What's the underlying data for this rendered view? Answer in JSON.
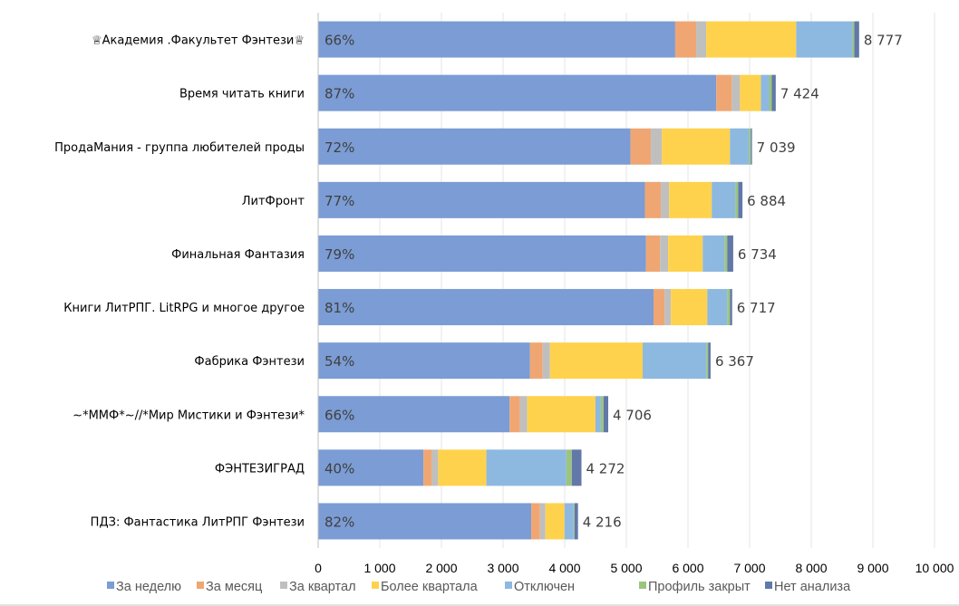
{
  "chart_data": {
    "type": "bar",
    "orientation": "horizontal",
    "stacked": true,
    "title": "",
    "xlabel": "",
    "ylabel": "",
    "xlim": [
      0,
      10000
    ],
    "x_ticks": [
      0,
      1000,
      2000,
      3000,
      4000,
      5000,
      6000,
      7000,
      8000,
      9000,
      10000
    ],
    "x_tick_labels": [
      "0",
      "1 000",
      "2 000",
      "3 000",
      "4 000",
      "5 000",
      "6 000",
      "7 000",
      "8 000",
      "9 000",
      "10 000"
    ],
    "grid": true,
    "legend_position": "bottom",
    "categories": [
      "♕Академия .Факультет Фэнтези♕",
      "Время читать книги",
      "ПродаМания - группа любителей проды",
      "ЛитФронт",
      "Финальная Фантазия",
      "Книги ЛитРПГ. LitRPG и многое другое",
      "Фабрика Фэнтези",
      "~*ММФ*~//*Мир Мистики и Фэнтези*",
      "ФЭНТЕЗИГРАД",
      "ПДЗ: Фантастика ЛитРПГ Фэнтези"
    ],
    "series": [
      {
        "name": "За неделю",
        "color": "#7b9cd4",
        "values": [
          5793,
          6459,
          5068,
          5301,
          5320,
          5441,
          3438,
          3106,
          1709,
          3457
        ]
      },
      {
        "name": "За месяц",
        "color": "#f0a672",
        "values": [
          340,
          252,
          330,
          259,
          226,
          178,
          205,
          168,
          135,
          142
        ]
      },
      {
        "name": "За квартал",
        "color": "#bfbfbf",
        "values": [
          162,
          133,
          177,
          133,
          132,
          104,
          118,
          118,
          103,
          88
        ]
      },
      {
        "name": "Более квартала",
        "color": "#ffd24d",
        "values": [
          1460,
          339,
          1106,
          693,
          561,
          590,
          1504,
          1107,
          782,
          310
        ]
      },
      {
        "name": "Отключен",
        "color": "#8db8e0",
        "values": [
          915,
          133,
          310,
          384,
          354,
          324,
          1033,
          88,
          1298,
          148
        ]
      },
      {
        "name": "Профиль закрыт",
        "color": "#9bc57f",
        "values": [
          29,
          44,
          29,
          44,
          44,
          44,
          29,
          44,
          88,
          14
        ]
      },
      {
        "name": "Нет анализа",
        "color": "#6178a8",
        "values": [
          78,
          64,
          19,
          70,
          97,
          36,
          40,
          75,
          157,
          57
        ]
      }
    ],
    "percent_labels": [
      "66%",
      "87%",
      "72%",
      "77%",
      "79%",
      "81%",
      "54%",
      "66%",
      "40%",
      "82%"
    ],
    "total_labels": [
      "8 777",
      "7 424",
      "7 039",
      "6 884",
      "6 734",
      "6 717",
      "6 367",
      "4 706",
      "4 272",
      "4 216"
    ],
    "totals": [
      8777,
      7424,
      7039,
      6884,
      6734,
      6717,
      6367,
      4706,
      4272,
      4216
    ]
  }
}
